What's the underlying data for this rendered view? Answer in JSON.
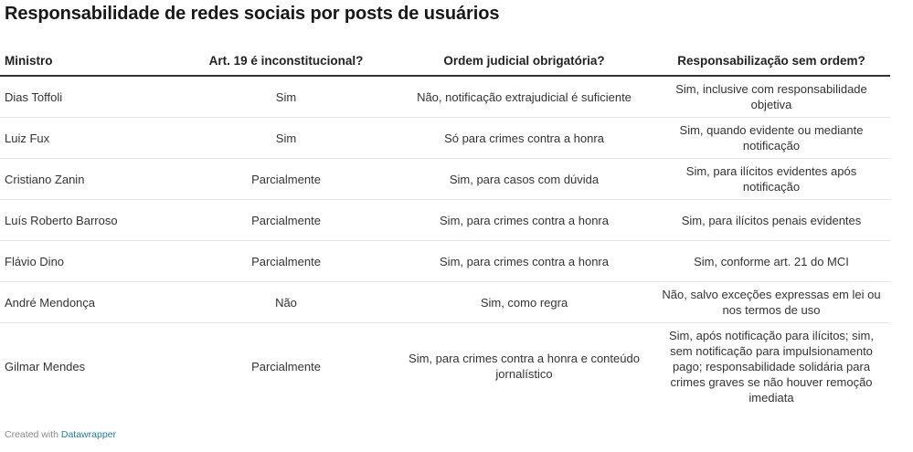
{
  "title": "Responsabilidade de redes sociais por posts de usuários",
  "table": {
    "headers": [
      "Ministro",
      "Art. 19 é inconstitucional?",
      "Ordem judicial obrigatória?",
      "Responsabilização sem ordem?"
    ],
    "rows": [
      [
        "Dias Toffoli",
        "Sim",
        "Não, notificação extrajudicial é suficiente",
        "Sim, inclusive com responsabilidade objetiva"
      ],
      [
        "Luiz Fux",
        "Sim",
        "Só para crimes contra a honra",
        "Sim, quando evidente ou mediante notificação"
      ],
      [
        "Cristiano Zanin",
        "Parcialmente",
        "Sim, para casos com dúvida",
        "Sim, para ilícitos evidentes após notificação"
      ],
      [
        "Luís Roberto Barroso",
        "Parcialmente",
        "Sim, para crimes contra a honra",
        "Sim, para ilícitos penais evidentes"
      ],
      [
        "Flávio Dino",
        "Parcialmente",
        "Sim, para crimes contra a honra",
        "Sim, conforme art. 21 do MCI"
      ],
      [
        "André Mendonça",
        "Não",
        "Sim, como regra",
        "Não, salvo exceções expressas em lei ou nos termos de uso"
      ],
      [
        "Gilmar Mendes",
        "Parcialmente",
        "Sim, para crimes contra a honra e conteúdo jornalístico",
        "Sim, após notificação para ilícitos; sim, sem notificação para impulsionamento pago; responsabilidade solidária para crimes graves se não houver remoção imediata"
      ]
    ]
  },
  "footer": {
    "prefix": "Created with",
    "link_label": "Datawrapper"
  }
}
